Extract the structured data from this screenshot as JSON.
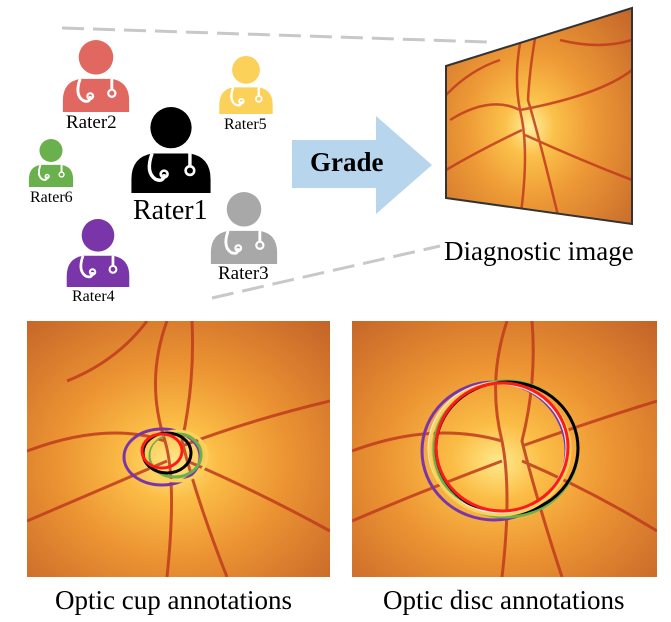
{
  "arrow": {
    "label": "Grade",
    "color": "#b8d5ee"
  },
  "raters": [
    {
      "label": "Rater1",
      "color": "#000000"
    },
    {
      "label": "Rater2",
      "color": "#e06860"
    },
    {
      "label": "Rater3",
      "color": "#a8a8a8"
    },
    {
      "label": "Rater4",
      "color": "#7a35a8"
    },
    {
      "label": "Rater5",
      "color": "#fcd15a"
    },
    {
      "label": "Rater6",
      "color": "#6ab04c"
    }
  ],
  "diagnostic_image": {
    "caption": "Diagnostic image"
  },
  "panels": [
    {
      "caption": "Optic cup annotations"
    },
    {
      "caption": "Optic disc annotations"
    }
  ]
}
